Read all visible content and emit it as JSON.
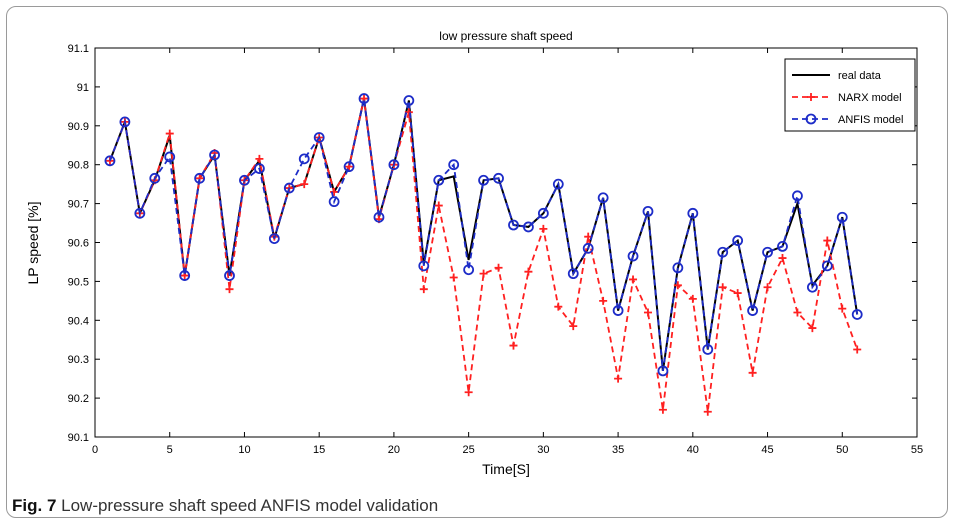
{
  "figure": {
    "caption_label": "Fig. 7",
    "caption_text": " Low-pressure shaft speed ANFIS model validation"
  },
  "chart_data": {
    "type": "line",
    "title": "low pressure shaft speed",
    "xlabel": "Time[S]",
    "ylabel": "LP speed [%]",
    "xlim": [
      0,
      55
    ],
    "ylim": [
      90.1,
      91.1
    ],
    "xticks": [
      0,
      5,
      10,
      15,
      20,
      25,
      30,
      35,
      40,
      45,
      50,
      55
    ],
    "yticks": [
      90.1,
      90.2,
      90.3,
      90.4,
      90.5,
      90.6,
      90.7,
      90.8,
      90.9,
      91,
      91.1
    ],
    "ytick_labels": [
      "90.1",
      "90.2",
      "90.3",
      "90.4",
      "90.5",
      "90.6",
      "90.7",
      "90.8",
      "90.9",
      "91",
      "91.1"
    ],
    "grid": false,
    "legend_position": "top-right",
    "x": [
      1,
      2,
      3,
      4,
      5,
      6,
      7,
      8,
      9,
      10,
      11,
      12,
      13,
      14,
      15,
      16,
      17,
      18,
      19,
      20,
      21,
      22,
      23,
      24,
      25,
      26,
      27,
      28,
      29,
      30,
      31,
      32,
      33,
      34,
      35,
      36,
      37,
      38,
      39,
      40,
      41,
      42,
      43,
      44,
      45,
      46,
      47,
      48,
      49,
      50,
      51
    ],
    "series": [
      {
        "name": "real data",
        "color": "#000000",
        "style": "solid",
        "marker": "none",
        "values": [
          90.81,
          90.91,
          90.675,
          90.76,
          90.875,
          90.515,
          90.765,
          90.825,
          90.515,
          90.76,
          90.81,
          90.61,
          90.74,
          90.75,
          90.87,
          90.73,
          90.795,
          90.97,
          90.665,
          90.8,
          90.965,
          90.545,
          90.76,
          90.77,
          90.555,
          90.76,
          90.765,
          90.645,
          90.64,
          90.675,
          90.75,
          90.52,
          90.585,
          90.715,
          90.425,
          90.565,
          90.68,
          90.27,
          90.535,
          90.675,
          90.325,
          90.575,
          90.605,
          90.425,
          90.575,
          90.59,
          90.7,
          90.49,
          90.54,
          90.665,
          90.415
        ]
      },
      {
        "name": "NARX model",
        "color": "#ff2020",
        "style": "dashed",
        "marker": "+",
        "values": [
          90.81,
          90.91,
          90.675,
          90.76,
          90.88,
          90.515,
          90.765,
          90.83,
          90.48,
          90.76,
          90.815,
          90.615,
          90.74,
          90.75,
          90.87,
          90.73,
          90.795,
          90.97,
          90.66,
          90.8,
          90.935,
          90.48,
          90.695,
          90.51,
          90.215,
          90.52,
          90.535,
          90.335,
          90.525,
          90.635,
          90.435,
          90.385,
          90.615,
          90.45,
          90.25,
          90.505,
          90.42,
          90.17,
          90.49,
          90.455,
          90.165,
          90.485,
          90.47,
          90.265,
          90.485,
          90.56,
          90.42,
          90.38,
          90.605,
          90.43,
          90.325
        ]
      },
      {
        "name": "ANFIS model",
        "color": "#1d2cc8",
        "style": "dashed",
        "marker": "o",
        "values": [
          90.81,
          90.91,
          90.675,
          90.765,
          90.82,
          90.515,
          90.765,
          90.825,
          90.515,
          90.76,
          90.79,
          90.61,
          90.74,
          90.815,
          90.87,
          90.705,
          90.795,
          90.97,
          90.665,
          90.8,
          90.965,
          90.54,
          90.76,
          90.8,
          90.53,
          90.76,
          90.765,
          90.645,
          90.64,
          90.675,
          90.75,
          90.52,
          90.585,
          90.715,
          90.425,
          90.565,
          90.68,
          90.27,
          90.535,
          90.675,
          90.325,
          90.575,
          90.605,
          90.425,
          90.575,
          90.59,
          90.72,
          90.485,
          90.54,
          90.665,
          90.415
        ]
      }
    ]
  }
}
